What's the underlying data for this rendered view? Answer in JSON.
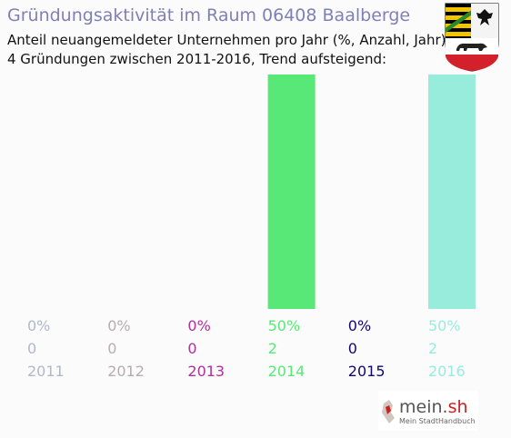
{
  "header": {
    "title": "Gründungsaktivität im Raum 06408 Baalberge",
    "subtitle_line1": "Anteil neuangemeldeter Unternehmen pro Jahr (%, Anzahl, Jahr)",
    "subtitle_line2": "4 Gründungen zwischen 2011-2016, Trend aufsteigend:"
  },
  "emblem": {
    "name": "coat-of-arms-icon"
  },
  "brand": {
    "name_main": "mein.",
    "name_accent": "sh",
    "tagline": "Mein StadtHandbuch",
    "accent_color": "#d02020"
  },
  "chart_data": {
    "type": "bar",
    "categories": [
      "2011",
      "2012",
      "2013",
      "2014",
      "2015",
      "2016"
    ],
    "percent_labels": [
      "0%",
      "0%",
      "0%",
      "50%",
      "0%",
      "50%"
    ],
    "count_labels": [
      "0",
      "0",
      "0",
      "2",
      "0",
      "2"
    ],
    "values": [
      0,
      0,
      0,
      50,
      0,
      50
    ],
    "counts": [
      0,
      0,
      0,
      2,
      0,
      2
    ],
    "colors": [
      "#b0b8cc",
      "#b8acb0",
      "#b0309c",
      "#58e878",
      "#100870",
      "#98ecdc"
    ],
    "ylim": [
      0,
      50
    ],
    "grid": false,
    "legend": "none"
  }
}
